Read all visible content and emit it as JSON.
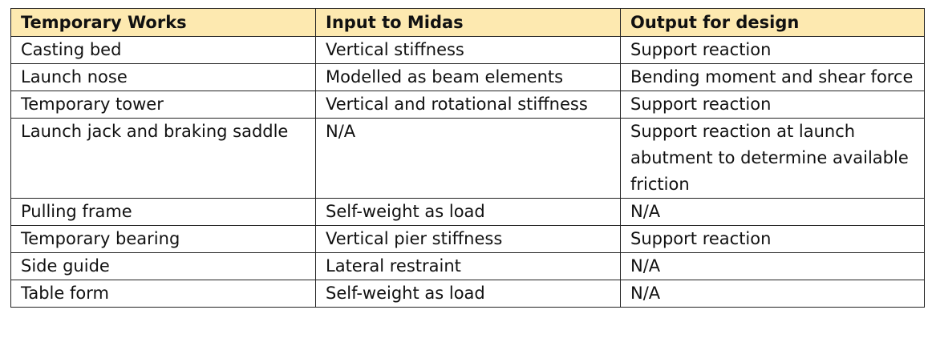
{
  "table": {
    "headers": [
      "Temporary Works",
      "Input to Midas",
      "Output for design"
    ],
    "header_bg": "#fde9b0",
    "rows": [
      [
        "Casting bed",
        "Vertical stiffness",
        "Support reaction"
      ],
      [
        "Launch nose",
        "Modelled as beam elements",
        "Bending moment and shear force"
      ],
      [
        "Temporary tower",
        "Vertical and rotational stiffness",
        "Support reaction"
      ],
      [
        "Launch jack and braking saddle",
        "N/A",
        "Support reaction at launch abutment to determine available friction"
      ],
      [
        "Pulling frame",
        "Self-weight as load",
        "N/A"
      ],
      [
        "Temporary bearing",
        "Vertical pier stiffness",
        "Support reaction"
      ],
      [
        "Side guide",
        "Lateral restraint",
        "N/A"
      ],
      [
        "Table form",
        "Self-weight as load",
        "N/A"
      ]
    ]
  }
}
